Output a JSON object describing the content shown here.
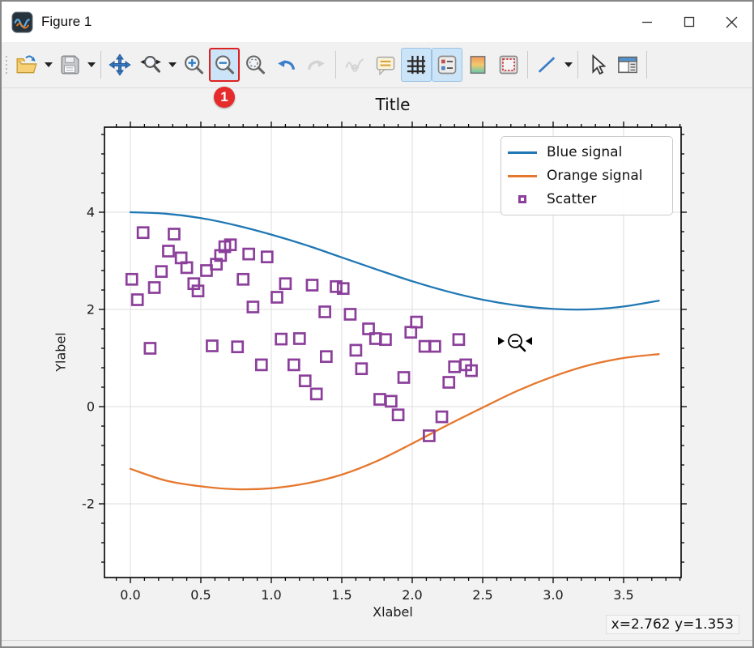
{
  "window": {
    "title": "Figure 1"
  },
  "toolbar": {
    "buttons": [
      "open",
      "open-dropdown",
      "save",
      "save-dropdown",
      "pan",
      "zoom-to-rect",
      "zoom-dropdown",
      "zoom-in",
      "zoom-out",
      "zoom-original",
      "undo",
      "redo",
      "curve-options",
      "legend-options",
      "grid-toggle",
      "legend-panel-toggle",
      "colormap",
      "tight-layout",
      "line-style",
      "line-style-dropdown",
      "pointer",
      "subplot-settings"
    ],
    "active_buttons": [
      "zoom-out",
      "grid-toggle",
      "legend-panel-toggle"
    ],
    "annotated_button": "zoom-out",
    "disabled_buttons": [
      "redo",
      "curve-options"
    ]
  },
  "annotation": {
    "badge": "1"
  },
  "status": {
    "coordinates": "x=2.762 y=1.353"
  },
  "colors": {
    "blue_line": "#1f77b4",
    "orange_line": "#e6772e",
    "scatter": "#8b3f9a",
    "grid": "#dcdcdc",
    "spine": "#000000",
    "active_button_bg": "#cce4f7",
    "annotation_red": "#e52b2b"
  },
  "chart_data": {
    "type": "line",
    "title": "Title",
    "xlabel": "Xlabel",
    "ylabel": "Ylabel",
    "xlim": [
      -0.18,
      3.91
    ],
    "ylim": [
      -3.52,
      5.75
    ],
    "grid": true,
    "x_major_ticks": [
      0,
      0.5,
      1.0,
      1.5,
      2.0,
      2.5,
      3.0,
      3.5
    ],
    "x_tick_labels": [
      "0.0",
      "0.5",
      "1.0",
      "1.5",
      "2.0",
      "2.5",
      "3.0",
      "3.5"
    ],
    "y_major_ticks": [
      -2,
      0,
      2,
      4
    ],
    "y_tick_labels": [
      "-2",
      "0",
      "2",
      "4"
    ],
    "x_minor_step": 0.1,
    "y_minor_step": 0.4,
    "legend_position": "upper right",
    "x": [
      0,
      0.25,
      0.5,
      0.75,
      1.0,
      1.25,
      1.5,
      1.75,
      2.0,
      2.25,
      2.5,
      2.75,
      3.0,
      3.25,
      3.5,
      3.75
    ],
    "series": [
      {
        "name": "Blue signal",
        "type": "line",
        "color": "#1f77b4",
        "y": [
          4.0,
          3.97,
          3.88,
          3.73,
          3.54,
          3.32,
          3.07,
          2.82,
          2.58,
          2.37,
          2.2,
          2.08,
          2.01,
          2.0,
          2.06,
          2.18
        ]
      },
      {
        "name": "Orange signal",
        "type": "line",
        "color": "#e6772e",
        "y": [
          -1.28,
          -1.52,
          -1.64,
          -1.7,
          -1.68,
          -1.58,
          -1.4,
          -1.12,
          -0.76,
          -0.38,
          -0.02,
          0.33,
          0.62,
          0.85,
          1.0,
          1.08
        ]
      },
      {
        "name": "Scatter",
        "type": "scatter",
        "marker": "square",
        "color": "#8b3f9a",
        "points": [
          [
            0.09,
            3.58
          ],
          [
            0.31,
            3.55
          ],
          [
            0.27,
            3.2
          ],
          [
            0.36,
            3.06
          ],
          [
            0.4,
            2.86
          ],
          [
            0.01,
            2.62
          ],
          [
            0.05,
            2.2
          ],
          [
            0.17,
            2.45
          ],
          [
            0.22,
            2.78
          ],
          [
            0.45,
            2.53
          ],
          [
            0.48,
            2.38
          ],
          [
            0.54,
            2.8
          ],
          [
            0.61,
            2.93
          ],
          [
            0.64,
            3.11
          ],
          [
            0.67,
            3.29
          ],
          [
            0.71,
            3.33
          ],
          [
            0.84,
            3.14
          ],
          [
            0.97,
            3.08
          ],
          [
            0.8,
            2.62
          ],
          [
            0.87,
            2.05
          ],
          [
            1.04,
            2.25
          ],
          [
            1.1,
            2.53
          ],
          [
            1.29,
            2.5
          ],
          [
            1.46,
            2.47
          ],
          [
            1.51,
            2.43
          ],
          [
            1.38,
            1.95
          ],
          [
            1.56,
            1.9
          ],
          [
            0.14,
            1.2
          ],
          [
            0.58,
            1.25
          ],
          [
            0.76,
            1.23
          ],
          [
            0.93,
            0.86
          ],
          [
            1.07,
            1.39
          ],
          [
            1.2,
            1.4
          ],
          [
            1.16,
            0.86
          ],
          [
            1.24,
            0.53
          ],
          [
            1.32,
            0.26
          ],
          [
            1.39,
            1.03
          ],
          [
            1.6,
            1.16
          ],
          [
            1.64,
            0.78
          ],
          [
            1.69,
            1.6
          ],
          [
            1.74,
            1.4
          ],
          [
            1.81,
            1.38
          ],
          [
            1.99,
            1.53
          ],
          [
            2.03,
            1.74
          ],
          [
            2.09,
            1.24
          ],
          [
            2.16,
            1.24
          ],
          [
            2.33,
            1.38
          ],
          [
            1.94,
            0.6
          ],
          [
            2.26,
            0.5
          ],
          [
            2.3,
            0.82
          ],
          [
            2.38,
            0.86
          ],
          [
            2.42,
            0.74
          ],
          [
            1.77,
            0.15
          ],
          [
            1.85,
            0.11
          ],
          [
            1.9,
            -0.17
          ],
          [
            2.21,
            -0.21
          ],
          [
            2.12,
            -0.6
          ]
        ]
      }
    ],
    "cursor_overlay": {
      "type": "zoom-out-cursor",
      "x": 2.73,
      "y": 1.35
    }
  }
}
